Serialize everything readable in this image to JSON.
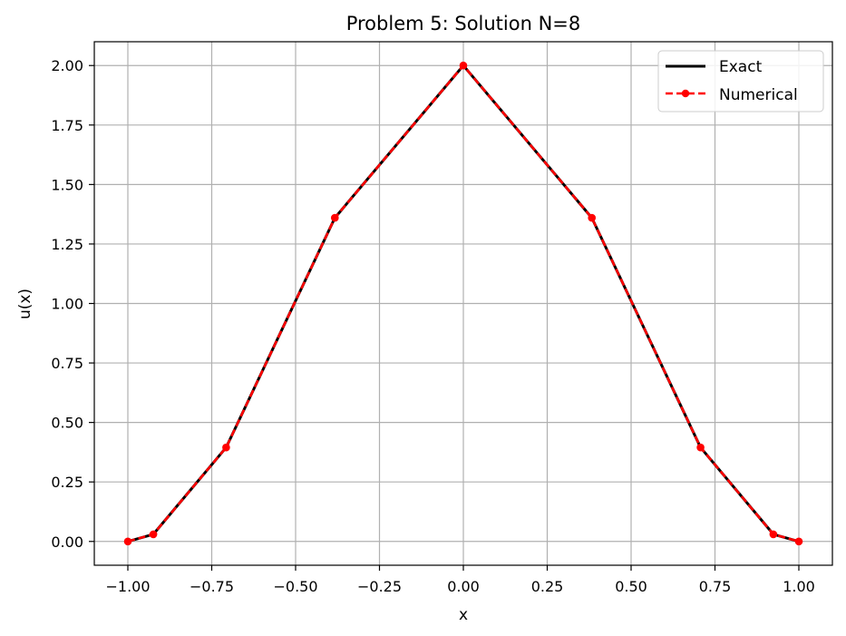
{
  "chart_data": {
    "type": "line",
    "title": "Problem 5: Solution N=8",
    "xlabel": "x",
    "ylabel": "u(x)",
    "xlim": [
      -1.1,
      1.1
    ],
    "ylim": [
      -0.1,
      2.1
    ],
    "xticks": [
      -1.0,
      -0.75,
      -0.5,
      -0.25,
      0.0,
      0.25,
      0.5,
      0.75,
      1.0
    ],
    "yticks": [
      0.0,
      0.25,
      0.5,
      0.75,
      1.0,
      1.25,
      1.5,
      1.75,
      2.0
    ],
    "xtick_labels": [
      "−1.00",
      "−0.75",
      "−0.50",
      "−0.25",
      "0.00",
      "0.25",
      "0.50",
      "0.75",
      "1.00"
    ],
    "ytick_labels": [
      "0.00",
      "0.25",
      "0.50",
      "0.75",
      "1.00",
      "1.25",
      "1.50",
      "1.75",
      "2.00"
    ],
    "grid": true,
    "legend_position": "top-right",
    "series": [
      {
        "name": "Exact",
        "style": "solid",
        "color": "#000000",
        "markers": false,
        "x": [
          -1.0,
          -0.924,
          -0.707,
          -0.383,
          0.0,
          0.383,
          0.707,
          0.924,
          1.0
        ],
        "y": [
          0.0,
          0.03,
          0.395,
          1.36,
          2.0,
          1.36,
          0.395,
          0.03,
          0.0
        ]
      },
      {
        "name": "Numerical",
        "style": "dashed",
        "color": "#ff0000",
        "markers": true,
        "x": [
          -1.0,
          -0.924,
          -0.707,
          -0.383,
          0.0,
          0.383,
          0.707,
          0.924,
          1.0
        ],
        "y": [
          0.0,
          0.03,
          0.395,
          1.36,
          2.0,
          1.36,
          0.395,
          0.03,
          0.0
        ]
      }
    ]
  }
}
